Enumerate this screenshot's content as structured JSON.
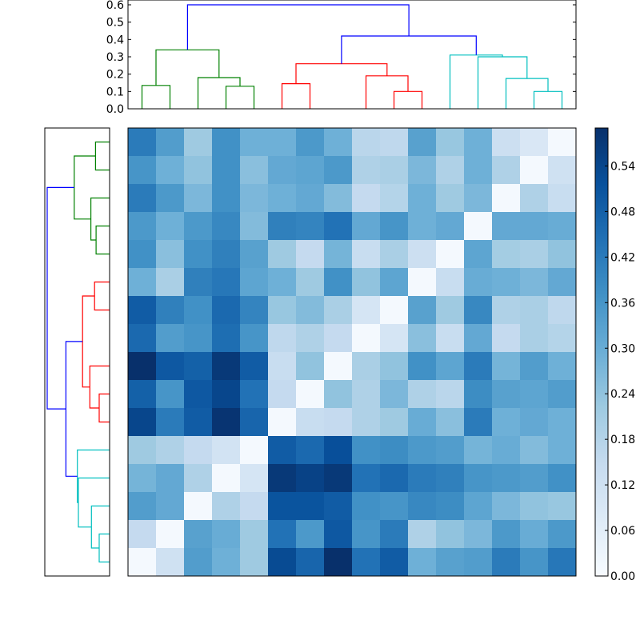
{
  "chart_data": [
    {
      "type": "dendrogram",
      "orientation": "top",
      "ylim": [
        0,
        0.6
      ],
      "yticks": [
        "0.0",
        "0.1",
        "0.2",
        "0.3",
        "0.4",
        "0.5",
        "0.6"
      ],
      "merges": [
        {
          "a": 0,
          "b": 1,
          "h": 0.135,
          "color": "#008000"
        },
        {
          "a": 3,
          "b": 4,
          "h": 0.13,
          "color": "#008000"
        },
        {
          "a": 2,
          "b": 17,
          "h": 0.18,
          "color": "#008000"
        },
        {
          "a": 16,
          "b": 18,
          "h": 0.34,
          "color": "#008000"
        },
        {
          "a": 9,
          "b": 10,
          "h": 0.1,
          "color": "#ff0000"
        },
        {
          "a": 8,
          "b": 20,
          "h": 0.19,
          "color": "#ff0000"
        },
        {
          "a": 5,
          "b": 6,
          "h": 0.145,
          "color": "#ff0000"
        },
        {
          "a": 22,
          "b": 21,
          "h": 0.26,
          "color": "#ff0000"
        },
        {
          "a": 14,
          "b": 15,
          "h": 0.1,
          "color": "#00bfbf"
        },
        {
          "a": 13,
          "b": 24,
          "h": 0.175,
          "color": "#00bfbf"
        },
        {
          "a": 12,
          "b": 25,
          "h": 0.3,
          "color": "#00bfbf"
        },
        {
          "a": 11,
          "b": 26,
          "h": 0.31,
          "color": "#00bfbf"
        },
        {
          "a": 23,
          "b": 27,
          "h": 0.42,
          "color": "#0000ff"
        },
        {
          "a": 19,
          "b": 28,
          "h": 0.6,
          "color": "#0000ff"
        }
      ]
    },
    {
      "type": "dendrogram",
      "orientation": "left",
      "merges": [
        {
          "a": 0,
          "b": 1,
          "h": 0.135,
          "color": "#008000"
        },
        {
          "a": 3,
          "b": 4,
          "h": 0.13,
          "color": "#008000"
        },
        {
          "a": 2,
          "b": 17,
          "h": 0.18,
          "color": "#008000"
        },
        {
          "a": 16,
          "b": 18,
          "h": 0.34,
          "color": "#008000"
        },
        {
          "a": 9,
          "b": 10,
          "h": 0.1,
          "color": "#ff0000"
        },
        {
          "a": 8,
          "b": 20,
          "h": 0.19,
          "color": "#ff0000"
        },
        {
          "a": 5,
          "b": 6,
          "h": 0.145,
          "color": "#ff0000"
        },
        {
          "a": 22,
          "b": 21,
          "h": 0.26,
          "color": "#ff0000"
        },
        {
          "a": 14,
          "b": 15,
          "h": 0.1,
          "color": "#00bfbf"
        },
        {
          "a": 13,
          "b": 24,
          "h": 0.175,
          "color": "#00bfbf"
        },
        {
          "a": 12,
          "b": 25,
          "h": 0.3,
          "color": "#00bfbf"
        },
        {
          "a": 11,
          "b": 26,
          "h": 0.31,
          "color": "#00bfbf"
        },
        {
          "a": 23,
          "b": 27,
          "h": 0.42,
          "color": "#0000ff"
        },
        {
          "a": 19,
          "b": 28,
          "h": 0.6,
          "color": "#0000ff"
        }
      ]
    },
    {
      "type": "heatmap",
      "colormap": "Blues",
      "vmin": 0,
      "vmax": 0.59,
      "colorbar_ticks": [
        "0.00",
        "0.06",
        "0.12",
        "0.18",
        "0.24",
        "0.30",
        "0.36",
        "0.42",
        "0.48",
        "0.54"
      ],
      "values": [
        [
          0.42,
          0.34,
          0.22,
          0.37,
          0.29,
          0.29,
          0.35,
          0.29,
          0.17,
          0.16,
          0.33,
          0.23,
          0.29,
          0.13,
          0.09,
          0.01
        ],
        [
          0.36,
          0.29,
          0.24,
          0.37,
          0.25,
          0.31,
          0.32,
          0.35,
          0.19,
          0.2,
          0.27,
          0.19,
          0.29,
          0.19,
          0.01,
          0.12
        ],
        [
          0.42,
          0.35,
          0.27,
          0.37,
          0.27,
          0.29,
          0.31,
          0.26,
          0.15,
          0.18,
          0.29,
          0.22,
          0.27,
          0.01,
          0.19,
          0.14
        ],
        [
          0.35,
          0.29,
          0.35,
          0.39,
          0.26,
          0.41,
          0.4,
          0.44,
          0.31,
          0.36,
          0.29,
          0.31,
          0.01,
          0.31,
          0.31,
          0.3
        ],
        [
          0.37,
          0.25,
          0.37,
          0.41,
          0.33,
          0.22,
          0.15,
          0.28,
          0.14,
          0.2,
          0.13,
          0.01,
          0.32,
          0.21,
          0.2,
          0.24
        ],
        [
          0.29,
          0.2,
          0.41,
          0.43,
          0.32,
          0.29,
          0.22,
          0.37,
          0.24,
          0.32,
          0.01,
          0.14,
          0.3,
          0.29,
          0.27,
          0.31
        ],
        [
          0.49,
          0.41,
          0.37,
          0.46,
          0.4,
          0.23,
          0.26,
          0.2,
          0.1,
          0.01,
          0.33,
          0.22,
          0.39,
          0.19,
          0.2,
          0.16
        ],
        [
          0.46,
          0.34,
          0.36,
          0.45,
          0.36,
          0.16,
          0.19,
          0.15,
          0.01,
          0.1,
          0.25,
          0.14,
          0.31,
          0.15,
          0.2,
          0.18
        ],
        [
          0.59,
          0.5,
          0.48,
          0.57,
          0.49,
          0.14,
          0.24,
          0.01,
          0.2,
          0.24,
          0.37,
          0.32,
          0.42,
          0.28,
          0.34,
          0.29
        ],
        [
          0.48,
          0.36,
          0.5,
          0.54,
          0.44,
          0.15,
          0.01,
          0.24,
          0.19,
          0.27,
          0.19,
          0.17,
          0.38,
          0.33,
          0.32,
          0.34
        ],
        [
          0.54,
          0.42,
          0.49,
          0.58,
          0.47,
          0.01,
          0.14,
          0.15,
          0.19,
          0.22,
          0.3,
          0.25,
          0.42,
          0.29,
          0.31,
          0.29
        ],
        [
          0.22,
          0.19,
          0.15,
          0.11,
          0.01,
          0.49,
          0.46,
          0.52,
          0.37,
          0.38,
          0.35,
          0.34,
          0.28,
          0.3,
          0.26,
          0.29
        ],
        [
          0.28,
          0.31,
          0.19,
          0.01,
          0.1,
          0.57,
          0.55,
          0.57,
          0.44,
          0.46,
          0.42,
          0.41,
          0.36,
          0.35,
          0.34,
          0.37
        ],
        [
          0.34,
          0.31,
          0.01,
          0.19,
          0.15,
          0.51,
          0.51,
          0.49,
          0.37,
          0.36,
          0.39,
          0.38,
          0.32,
          0.27,
          0.24,
          0.23
        ],
        [
          0.15,
          0.01,
          0.33,
          0.3,
          0.22,
          0.44,
          0.35,
          0.5,
          0.36,
          0.42,
          0.19,
          0.24,
          0.27,
          0.35,
          0.3,
          0.35
        ],
        [
          0.01,
          0.12,
          0.34,
          0.29,
          0.22,
          0.53,
          0.47,
          0.59,
          0.44,
          0.49,
          0.29,
          0.33,
          0.34,
          0.42,
          0.36,
          0.43
        ]
      ]
    }
  ]
}
